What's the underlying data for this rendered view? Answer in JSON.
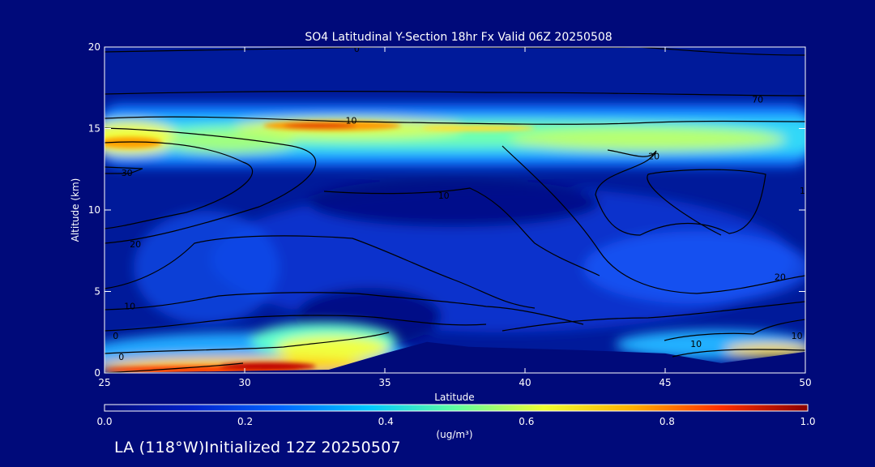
{
  "title": "SO4 Latitudinal Y-Section 18hr  Fx Valid 06Z 20250508",
  "footer_text": "LA (118°W)Initialized 12Z 20250507",
  "chart_data": {
    "type": "heatmap",
    "title": "SO4 Latitudinal Y-Section 18hr  Fx Valid 06Z 20250508",
    "xlabel": "Latitude",
    "ylabel": "Altitude (km)",
    "xlim": [
      25,
      50
    ],
    "ylim": [
      0,
      20
    ],
    "x_ticks": [
      25,
      30,
      35,
      40,
      45,
      50
    ],
    "y_ticks": [
      0,
      5,
      10,
      15,
      20
    ],
    "colorbar": {
      "label": "(ug/m³)",
      "range": [
        0.0,
        1.0
      ],
      "ticks": [
        "0.0",
        "0.2",
        "0.4",
        "0.6",
        "0.8",
        "1.0"
      ],
      "colors": [
        "#000a7a",
        "#0022cc",
        "#0066ff",
        "#00c8ff",
        "#60ffa0",
        "#f0ff30",
        "#ffb000",
        "#ff3000",
        "#8a0000"
      ]
    },
    "concentration_features": [
      {
        "feature": "upper layer",
        "lat": [
          25,
          50
        ],
        "alt": [
          12.5,
          16.5
        ],
        "peak": 0.75,
        "peak_lat": 32.5,
        "peak_alt": 15.0
      },
      {
        "feature": "upper layer left maximum",
        "lat": [
          25,
          27
        ],
        "alt": [
          13.5,
          14.5
        ],
        "peak": 0.8
      },
      {
        "feature": "surface layer",
        "lat": [
          25,
          35
        ],
        "alt": [
          0,
          2.5
        ],
        "peak": 1.0,
        "peak_lat": 31,
        "peak_alt": 0.2
      },
      {
        "feature": "surface layer north",
        "lat": [
          45,
          50
        ],
        "alt": [
          0.5,
          2.5
        ],
        "peak": 0.6
      }
    ],
    "terrain": [
      [
        25,
        0
      ],
      [
        33,
        0.2
      ],
      [
        35,
        1.2
      ],
      [
        36.5,
        1.9
      ],
      [
        38,
        1.6
      ],
      [
        42,
        1.4
      ],
      [
        45,
        1.2
      ],
      [
        47,
        0.6
      ],
      [
        50,
        1.3
      ]
    ],
    "contour_labels": [
      {
        "text": "0",
        "lat": 34,
        "alt": 19.9
      },
      {
        "text": "10",
        "lat": 33.8,
        "alt": 15.5
      },
      {
        "text": "70",
        "lat": 48.3,
        "alt": 16.8
      },
      {
        "text": "20",
        "lat": 44.6,
        "alt": 13.3
      },
      {
        "text": "30",
        "lat": 25.8,
        "alt": 12.3
      },
      {
        "text": "10",
        "lat": 37.1,
        "alt": 10.9
      },
      {
        "text": "1",
        "lat": 49.9,
        "alt": 11.2
      },
      {
        "text": "20",
        "lat": 26.1,
        "alt": 7.9
      },
      {
        "text": "20",
        "lat": 49.1,
        "alt": 5.9
      },
      {
        "text": "10",
        "lat": 25.9,
        "alt": 4.1
      },
      {
        "text": "0",
        "lat": 25.4,
        "alt": 2.3
      },
      {
        "text": "0",
        "lat": 25.6,
        "alt": 1.0
      },
      {
        "text": "10",
        "lat": 46.1,
        "alt": 1.8
      },
      {
        "text": "10",
        "lat": 49.7,
        "alt": 2.3
      }
    ]
  }
}
